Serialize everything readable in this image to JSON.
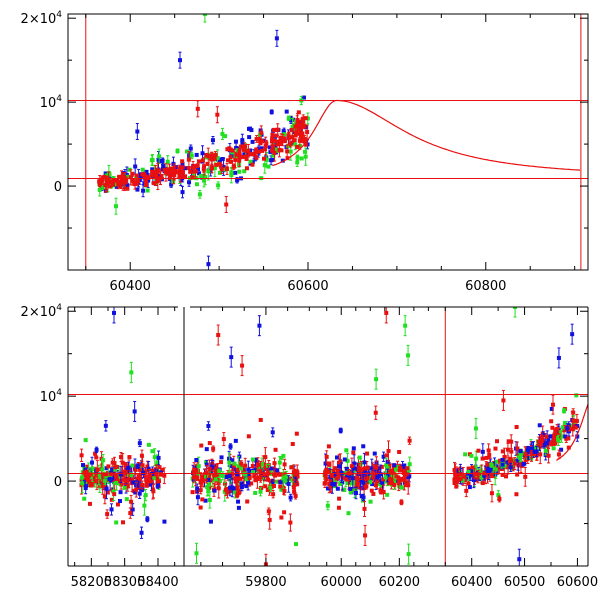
{
  "chart_data": [
    {
      "type": "scatter",
      "panel": "top",
      "title": "",
      "xlabel": "",
      "ylabel": "",
      "xlim": [
        60330,
        60915
      ],
      "ylim": [
        -10000,
        20500
      ],
      "x_ticks": [
        60400,
        60600,
        60800
      ],
      "x_tick_labels": [
        "60400",
        "60600",
        "60800"
      ],
      "y_ticks": [
        0,
        10000,
        20000
      ],
      "y_tick_labels": [
        {
          "base": "0",
          "exp": ""
        },
        {
          "base": "10",
          "exp": "4"
        },
        {
          "base": "2×10",
          "exp": "4"
        }
      ],
      "hlines": [
        900,
        10200
      ],
      "vlines": [
        60350,
        60907
      ],
      "model_curve": {
        "name": "model",
        "peak_x": 60632,
        "peak_y": 10200,
        "baseline": 900,
        "x_end": 60907
      },
      "series": [
        {
          "name": "blue",
          "color": "#1010e0",
          "x_range": [
            60365,
            60600
          ],
          "trend": [
            500,
            7000
          ],
          "scatter": 1900,
          "count": 140
        },
        {
          "name": "green",
          "color": "#20e020",
          "x_range": [
            60365,
            60600
          ],
          "trend": [
            500,
            6000
          ],
          "scatter": 2300,
          "count": 90
        },
        {
          "name": "red",
          "color": "#e81010",
          "x_range": [
            60365,
            60600
          ],
          "trend": [
            400,
            6600
          ],
          "scatter": 1100,
          "count": 230
        }
      ],
      "outliers": [
        {
          "x": 60456,
          "y": 15000,
          "series": "blue"
        },
        {
          "x": 60565,
          "y": 17600,
          "series": "blue"
        },
        {
          "x": 60484,
          "y": 20500,
          "series": "green"
        },
        {
          "x": 60476,
          "y": 9200,
          "series": "red"
        },
        {
          "x": 60498,
          "y": 8500,
          "series": "red"
        },
        {
          "x": 60508,
          "y": -2200,
          "series": "red"
        },
        {
          "x": 60408,
          "y": 6500,
          "series": "blue"
        },
        {
          "x": 60384,
          "y": -2400,
          "series": "green"
        },
        {
          "x": 60488,
          "y": -9300,
          "series": "blue"
        }
      ]
    },
    {
      "type": "scatter",
      "panel": "bottom",
      "title": "",
      "xlabel": "",
      "ylabel": "",
      "segments": [
        {
          "xlim": [
            58130,
            58460
          ],
          "x_ticks": [
            58200,
            58300,
            58400
          ],
          "x_tick_labels": [
            "58200",
            "58300",
            "58400"
          ],
          "data_range": [
            58170,
            58420
          ],
          "trend": [
            450,
            450
          ],
          "scatter": 2200,
          "count": 260
        },
        {
          "xlim": [
            59625,
            59920
          ],
          "x_ticks": [
            59800
          ],
          "x_tick_labels": [
            "59800"
          ],
          "data_range": [
            59630,
            59875
          ],
          "trend": [
            600,
            600
          ],
          "scatter": 2600,
          "count": 280
        },
        {
          "xlim": [
            59920,
            60340
          ],
          "x_ticks": [
            60000,
            60200
          ],
          "x_tick_labels": [
            "60000",
            "60200"
          ],
          "data_range": [
            59940,
            60240
          ],
          "trend": [
            500,
            500
          ],
          "scatter": 2300,
          "count": 280
        },
        {
          "xlim": [
            60340,
            60620
          ],
          "x_ticks": [
            60400,
            60500,
            60600
          ],
          "x_tick_labels": [
            "60400",
            "60500",
            "60600"
          ],
          "data_range": [
            60365,
            60600
          ],
          "trend": [
            500,
            7000
          ],
          "scatter": 1500,
          "count": 300
        }
      ],
      "ylim": [
        -10000,
        20500
      ],
      "y_ticks": [
        0,
        10000,
        20000
      ],
      "y_tick_labels": [
        {
          "base": "0",
          "exp": ""
        },
        {
          "base": "10",
          "exp": "4"
        },
        {
          "base": "2×10",
          "exp": "4"
        }
      ],
      "hlines": [
        900,
        10200
      ],
      "vline": 60350,
      "model_curve": {
        "name": "model",
        "peak_x": 60632,
        "peak_y": 10200,
        "baseline": 900
      },
      "series": [
        {
          "name": "blue",
          "color": "#1010e0"
        },
        {
          "name": "green",
          "color": "#20e020"
        },
        {
          "name": "red",
          "color": "#e81010"
        }
      ],
      "outliers": [
        {
          "x": 58268,
          "y": 19800,
          "series": "blue"
        },
        {
          "x": 58320,
          "y": 12800,
          "series": "green"
        },
        {
          "x": 58330,
          "y": 8200,
          "series": "blue"
        },
        {
          "x": 59690,
          "y": 17200,
          "series": "red"
        },
        {
          "x": 59720,
          "y": 14600,
          "series": "blue"
        },
        {
          "x": 59785,
          "y": 18300,
          "series": "blue"
        },
        {
          "x": 59745,
          "y": 13600,
          "series": "red"
        },
        {
          "x": 59640,
          "y": -8500,
          "series": "green"
        },
        {
          "x": 59800,
          "y": -9800,
          "series": "red"
        },
        {
          "x": 60155,
          "y": 19800,
          "series": "red"
        },
        {
          "x": 60220,
          "y": 18300,
          "series": "green"
        },
        {
          "x": 60230,
          "y": 14800,
          "series": "green"
        },
        {
          "x": 60120,
          "y": 12000,
          "series": "green"
        },
        {
          "x": 60232,
          "y": -8600,
          "series": "green"
        },
        {
          "x": 60082,
          "y": -6400,
          "series": "red"
        },
        {
          "x": 60482,
          "y": 20500,
          "series": "green"
        },
        {
          "x": 60590,
          "y": 17300,
          "series": "blue"
        },
        {
          "x": 60490,
          "y": -9200,
          "series": "blue"
        },
        {
          "x": 60565,
          "y": 14500,
          "series": "blue"
        },
        {
          "x": 60408,
          "y": 6200,
          "series": "green"
        },
        {
          "x": 60460,
          "y": 9500,
          "series": "red"
        }
      ]
    }
  ]
}
